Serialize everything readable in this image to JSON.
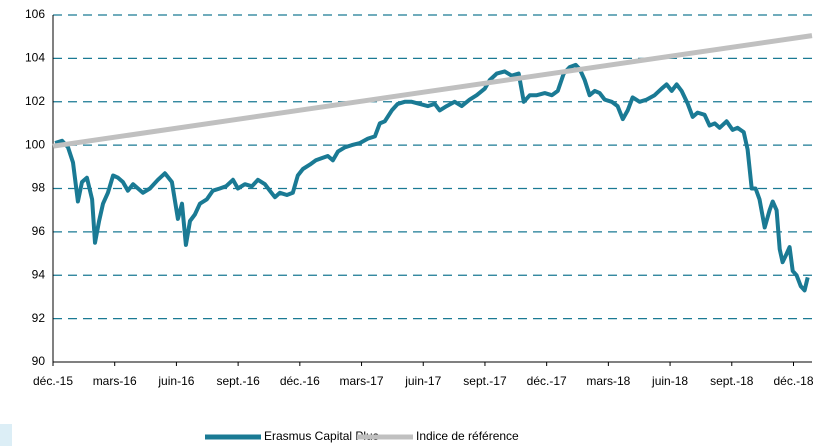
{
  "chart_data": {
    "type": "line",
    "xlim": [
      0,
      36.9
    ],
    "xticks": [
      {
        "value": 0,
        "label": "déc.-15"
      },
      {
        "value": 3,
        "label": "mars-16"
      },
      {
        "value": 6,
        "label": "juin-16"
      },
      {
        "value": 9,
        "label": "sept.-16"
      },
      {
        "value": 12,
        "label": "déc.-16"
      },
      {
        "value": 15,
        "label": "mars-17"
      },
      {
        "value": 18,
        "label": "juin-17"
      },
      {
        "value": 21,
        "label": "sept.-17"
      },
      {
        "value": 24,
        "label": "déc.-17"
      },
      {
        "value": 27,
        "label": "mars-18"
      },
      {
        "value": 30,
        "label": "juin-18"
      },
      {
        "value": 33,
        "label": "sept.-18"
      },
      {
        "value": 36,
        "label": "déc.-18"
      }
    ],
    "ylim": [
      90,
      106
    ],
    "yticks": [
      90,
      92,
      94,
      96,
      98,
      100,
      102,
      104,
      106
    ],
    "grid": true,
    "legend": "bottom",
    "series": [
      {
        "name": "Erasmus Capital Plus",
        "color": "#1a7a94",
        "x": [
          0.1,
          0.44,
          0.73,
          0.97,
          1.21,
          1.41,
          1.65,
          1.9,
          2.04,
          2.24,
          2.43,
          2.67,
          2.92,
          3.16,
          3.4,
          3.64,
          3.89,
          4.13,
          4.37,
          4.71,
          5.1,
          5.44,
          5.78,
          6.07,
          6.27,
          6.46,
          6.66,
          6.9,
          7.14,
          7.48,
          7.77,
          8.11,
          8.41,
          8.75,
          8.99,
          9.33,
          9.67,
          9.96,
          10.3,
          10.54,
          10.79,
          11.03,
          11.37,
          11.66,
          11.9,
          12.15,
          12.49,
          12.78,
          13.07,
          13.36,
          13.61,
          13.85,
          14.19,
          14.53,
          14.92,
          15.31,
          15.65,
          15.89,
          16.13,
          16.47,
          16.76,
          17.1,
          17.44,
          17.83,
          18.22,
          18.56,
          18.8,
          19.14,
          19.53,
          19.87,
          20.26,
          20.6,
          20.99,
          21.23,
          21.57,
          21.96,
          22.3,
          22.64,
          22.89,
          23.18,
          23.52,
          23.91,
          24.25,
          24.54,
          24.83,
          25.12,
          25.41,
          25.61,
          25.85,
          26.09,
          26.34,
          26.58,
          26.82,
          27.16,
          27.45,
          27.7,
          27.94,
          28.18,
          28.52,
          28.86,
          29.25,
          29.59,
          29.83,
          30.08,
          30.32,
          30.56,
          30.86,
          31.1,
          31.34,
          31.68,
          31.92,
          32.17,
          32.41,
          32.75,
          33.04,
          33.28,
          33.58,
          33.77,
          33.97,
          34.16,
          34.35,
          34.6,
          34.84,
          34.99,
          35.18,
          35.33,
          35.47,
          35.67,
          35.81,
          35.96,
          36.15,
          36.35,
          36.54,
          36.69
        ],
        "values": [
          100.1,
          100.2,
          99.9,
          99.2,
          97.4,
          98.3,
          98.5,
          97.5,
          95.5,
          96.5,
          97.3,
          97.8,
          98.6,
          98.5,
          98.3,
          97.9,
          98.2,
          98.0,
          97.8,
          98.0,
          98.4,
          98.7,
          98.3,
          96.6,
          97.3,
          95.4,
          96.5,
          96.8,
          97.3,
          97.5,
          97.9,
          98.0,
          98.1,
          98.4,
          98.0,
          98.2,
          98.1,
          98.4,
          98.2,
          97.9,
          97.6,
          97.8,
          97.7,
          97.8,
          98.6,
          98.9,
          99.1,
          99.3,
          99.4,
          99.5,
          99.3,
          99.7,
          99.9,
          100.0,
          100.1,
          100.3,
          100.4,
          101.0,
          101.1,
          101.6,
          101.9,
          102.0,
          102.0,
          101.9,
          101.8,
          101.9,
          101.6,
          101.8,
          102.0,
          101.8,
          102.1,
          102.3,
          102.6,
          103.0,
          103.3,
          103.4,
          103.2,
          103.3,
          102.0,
          102.3,
          102.3,
          102.4,
          102.3,
          102.5,
          103.3,
          103.6,
          103.7,
          103.5,
          103.0,
          102.3,
          102.5,
          102.4,
          102.1,
          102.0,
          101.8,
          101.2,
          101.6,
          102.2,
          102.0,
          102.1,
          102.3,
          102.6,
          102.8,
          102.5,
          102.8,
          102.5,
          101.9,
          101.3,
          101.5,
          101.4,
          100.9,
          101.0,
          100.8,
          101.1,
          100.7,
          100.8,
          100.6,
          99.8,
          98.0,
          98.0,
          97.5,
          96.2,
          97.0,
          97.4,
          97.0,
          95.2,
          94.6,
          95.0,
          95.3,
          94.2,
          94.0,
          93.5,
          93.3,
          93.9
        ]
      },
      {
        "name": "Indice de référence",
        "color": "#c0c0c0",
        "x": [
          0,
          36.9
        ],
        "values": [
          99.95,
          105.05
        ]
      }
    ]
  }
}
